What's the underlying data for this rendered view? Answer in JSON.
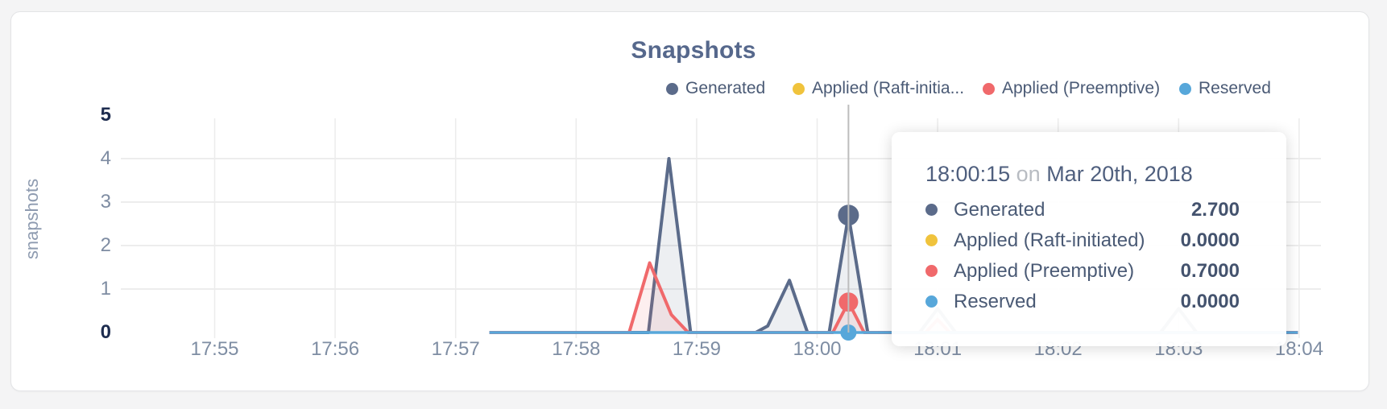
{
  "panel": {
    "background": "#ffffff",
    "page_background": "#f4f4f5"
  },
  "chart_data": {
    "type": "area",
    "title": "Snapshots",
    "xlabel": "",
    "ylabel": "snapshots",
    "x_tick_labels": [
      "17:55",
      "17:56",
      "17:57",
      "17:58",
      "17:59",
      "18:00",
      "18:01",
      "18:02",
      "18:03",
      "18:04"
    ],
    "y_tick_labels": [
      "0",
      "1",
      "2",
      "3",
      "4",
      "5"
    ],
    "ylim": [
      0,
      5
    ],
    "xlim": [
      "17:55",
      "18:04"
    ],
    "grid": true,
    "legend_position": "top-right",
    "x_unit": "minutes after 17:55 on Mar 20th, 2018",
    "series": [
      {
        "name": "Generated",
        "color": "#5b6b8a",
        "points": [
          [
            2.28,
            0
          ],
          [
            3.6,
            0
          ],
          [
            3.77,
            4.0
          ],
          [
            3.95,
            0
          ],
          [
            4.49,
            0
          ],
          [
            4.59,
            0.15
          ],
          [
            4.77,
            1.2
          ],
          [
            4.92,
            0
          ],
          [
            5.1,
            0
          ],
          [
            5.26,
            2.7
          ],
          [
            5.42,
            0
          ],
          [
            5.85,
            0
          ],
          [
            6.0,
            0.55
          ],
          [
            6.15,
            0
          ],
          [
            7.85,
            0
          ],
          [
            8.0,
            0.55
          ],
          [
            8.15,
            0
          ],
          [
            8.99,
            0
          ]
        ]
      },
      {
        "name": "Applied (Raft-initiated)",
        "color": "#f0c33c",
        "points": [
          [
            2.28,
            0
          ],
          [
            8.99,
            0
          ]
        ]
      },
      {
        "name": "Applied (Preemptive)",
        "color": "#f0696b",
        "points": [
          [
            2.28,
            0
          ],
          [
            3.44,
            0
          ],
          [
            3.61,
            1.6
          ],
          [
            3.79,
            0.41
          ],
          [
            3.93,
            0
          ],
          [
            5.13,
            0
          ],
          [
            5.26,
            0.7
          ],
          [
            5.39,
            0
          ],
          [
            5.9,
            0
          ],
          [
            6.0,
            0.3
          ],
          [
            6.1,
            0
          ],
          [
            8.99,
            0
          ]
        ]
      },
      {
        "name": "Reserved",
        "color": "#57a7da",
        "points": [
          [
            2.28,
            0
          ],
          [
            8.99,
            0
          ]
        ]
      }
    ],
    "hover": {
      "t": 5.26,
      "time_label": "18:00:15",
      "markers": [
        {
          "series": "Generated",
          "value": 2.7
        },
        {
          "series": "Applied (Raft-initiated)",
          "value": 0.0
        },
        {
          "series": "Applied (Preemptive)",
          "value": 0.7
        },
        {
          "series": "Reserved",
          "value": 0.0
        }
      ]
    }
  },
  "legend": {
    "items": [
      {
        "label": "Generated",
        "color": "#5b6b8a"
      },
      {
        "label": "Applied (Raft-initia...",
        "color": "#f0c33c"
      },
      {
        "label": "Applied (Preemptive)",
        "color": "#f0696b"
      },
      {
        "label": "Reserved",
        "color": "#57a7da"
      }
    ]
  },
  "tooltip": {
    "time": "18:00:15",
    "connector": "on",
    "date": "Mar 20th, 2018",
    "rows": [
      {
        "label": "Generated",
        "color": "#5b6b8a",
        "value": "2.700"
      },
      {
        "label": "Applied (Raft-initiated)",
        "color": "#f0c33c",
        "value": "0.0000"
      },
      {
        "label": "Applied (Preemptive)",
        "color": "#f0696b",
        "value": "0.7000"
      },
      {
        "label": "Reserved",
        "color": "#57a7da",
        "value": "0.0000"
      }
    ]
  }
}
